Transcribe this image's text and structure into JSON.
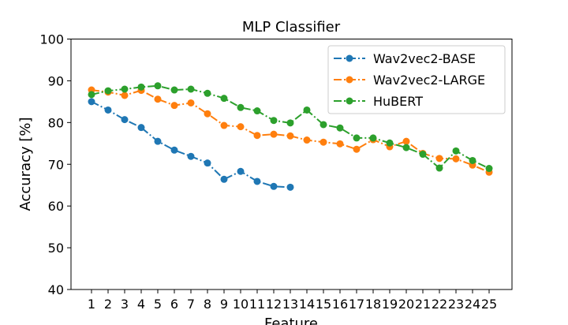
{
  "chart_data": {
    "type": "line",
    "title": "MLP Classifier",
    "xlabel": "Feature",
    "ylabel": "Accuracy [%]",
    "ylim": [
      40,
      100
    ],
    "yticks": [
      40,
      50,
      60,
      70,
      80,
      90,
      100
    ],
    "categories": [
      "1",
      "2",
      "3",
      "4",
      "5",
      "6",
      "7",
      "8",
      "9",
      "10",
      "11",
      "12",
      "13",
      "14",
      "15",
      "16",
      "17",
      "18",
      "19",
      "20",
      "21",
      "22",
      "23",
      "24",
      "25"
    ],
    "legend_position": "top-right",
    "grid": false,
    "series": [
      {
        "name": "Wav2vec2-BASE",
        "color": "#1f77b4",
        "x": [
          1,
          2,
          3,
          4,
          5,
          6,
          7,
          8,
          9,
          10,
          11,
          12,
          13
        ],
        "values": [
          85.0,
          83.0,
          80.7,
          78.8,
          75.5,
          73.4,
          71.9,
          70.3,
          66.4,
          68.3,
          65.9,
          64.7,
          64.5
        ]
      },
      {
        "name": "Wav2vec2-LARGE",
        "color": "#ff7f0e",
        "x": [
          1,
          2,
          3,
          4,
          5,
          6,
          7,
          8,
          9,
          10,
          11,
          12,
          13,
          14,
          15,
          16,
          17,
          18,
          19,
          20,
          21,
          22,
          23,
          24,
          25
        ],
        "values": [
          87.8,
          87.3,
          86.5,
          87.7,
          85.6,
          84.1,
          84.7,
          82.1,
          79.3,
          79.0,
          76.9,
          77.2,
          76.8,
          75.8,
          75.3,
          74.9,
          73.6,
          75.9,
          74.2,
          75.5,
          72.6,
          71.4,
          71.3,
          69.8,
          68.1
        ]
      },
      {
        "name": "HuBERT",
        "color": "#2ca02c",
        "x": [
          1,
          2,
          3,
          4,
          5,
          6,
          7,
          8,
          9,
          10,
          11,
          12,
          13,
          14,
          15,
          16,
          17,
          18,
          19,
          20,
          21,
          22,
          23,
          24,
          25
        ],
        "values": [
          86.7,
          87.6,
          88.0,
          88.5,
          88.8,
          87.8,
          88.0,
          87.0,
          85.8,
          83.6,
          82.8,
          80.5,
          79.9,
          83.0,
          79.5,
          78.7,
          76.3,
          76.3,
          75.1,
          74.0,
          72.4,
          69.1,
          73.2,
          70.9,
          69.0
        ]
      }
    ]
  }
}
